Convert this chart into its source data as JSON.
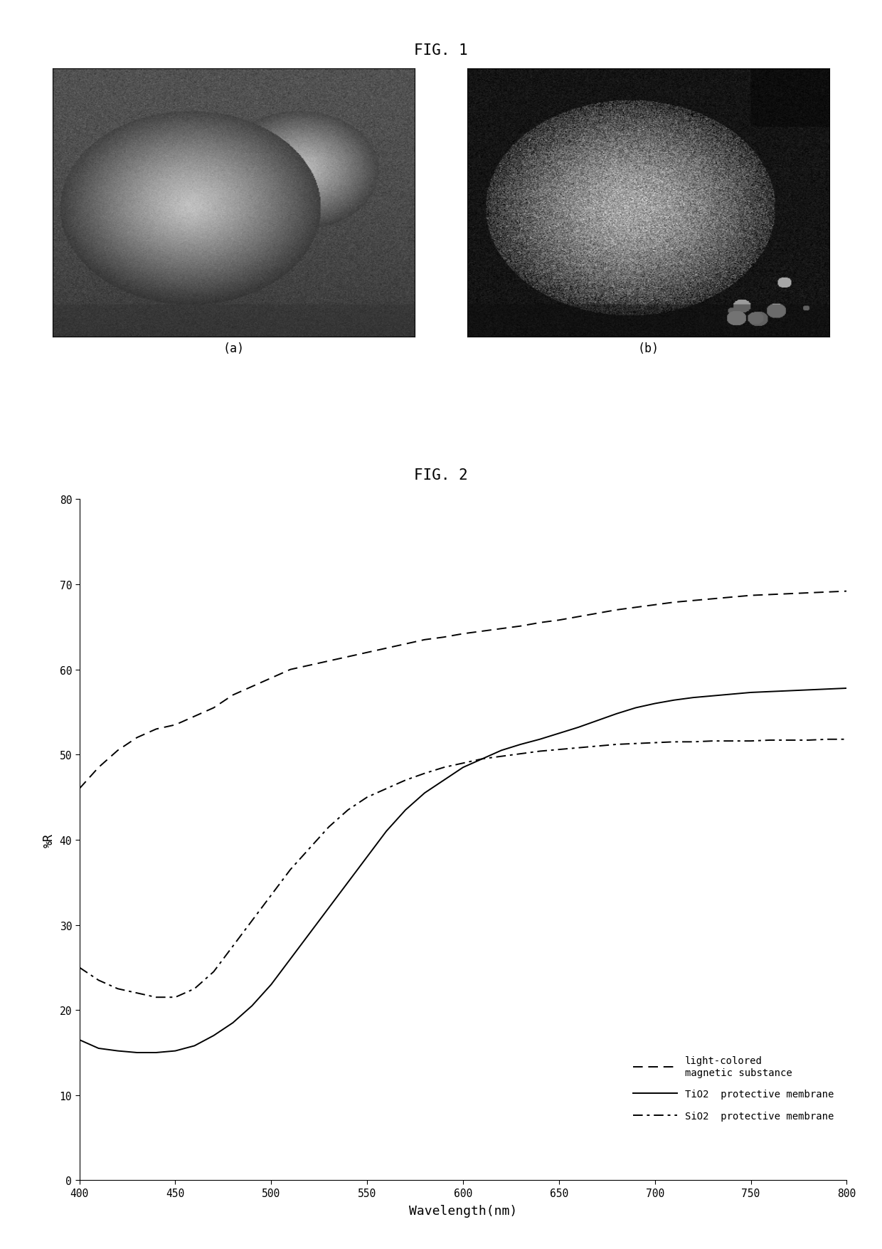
{
  "fig1_title": "FIG. 1",
  "fig2_title": "FIG. 2",
  "label_a": "(a)",
  "label_b": "(b)",
  "xlabel": "Wavelength(nm)",
  "ylabel": "%R",
  "xlim": [
    400,
    800
  ],
  "ylim": [
    0,
    80
  ],
  "xticks": [
    400,
    450,
    500,
    550,
    600,
    650,
    700,
    750,
    800
  ],
  "yticks": [
    0,
    10,
    20,
    30,
    40,
    50,
    60,
    70,
    80
  ],
  "legend_entries": [
    "light-colored\nmagnetic substance",
    "TiO2  protective membrane",
    "SiO2  protective membrane"
  ],
  "wavelength": [
    400,
    410,
    420,
    430,
    440,
    450,
    460,
    470,
    480,
    490,
    500,
    510,
    520,
    530,
    540,
    550,
    560,
    570,
    580,
    590,
    600,
    610,
    620,
    630,
    640,
    650,
    660,
    670,
    680,
    690,
    700,
    710,
    720,
    730,
    740,
    750,
    760,
    770,
    780,
    790,
    800
  ],
  "curve_light_magnetic": [
    46,
    48.5,
    50.5,
    52,
    53,
    53.5,
    54.5,
    55.5,
    57,
    58,
    59,
    60,
    60.5,
    61,
    61.5,
    62,
    62.5,
    63,
    63.5,
    63.8,
    64.2,
    64.5,
    64.8,
    65.1,
    65.5,
    65.8,
    66.2,
    66.6,
    67.0,
    67.3,
    67.6,
    67.9,
    68.1,
    68.3,
    68.5,
    68.7,
    68.8,
    68.9,
    69.0,
    69.1,
    69.2
  ],
  "curve_TiO2": [
    16.5,
    15.5,
    15.2,
    15.0,
    15.0,
    15.2,
    15.8,
    17.0,
    18.5,
    20.5,
    23.0,
    26.0,
    29.0,
    32.0,
    35.0,
    38.0,
    41.0,
    43.5,
    45.5,
    47.0,
    48.5,
    49.5,
    50.5,
    51.2,
    51.8,
    52.5,
    53.2,
    54.0,
    54.8,
    55.5,
    56.0,
    56.4,
    56.7,
    56.9,
    57.1,
    57.3,
    57.4,
    57.5,
    57.6,
    57.7,
    57.8
  ],
  "curve_SiO2": [
    25,
    23.5,
    22.5,
    22.0,
    21.5,
    21.5,
    22.5,
    24.5,
    27.5,
    30.5,
    33.5,
    36.5,
    39.0,
    41.5,
    43.5,
    45.0,
    46.0,
    47.0,
    47.8,
    48.5,
    49.0,
    49.5,
    49.8,
    50.1,
    50.4,
    50.6,
    50.8,
    51.0,
    51.2,
    51.3,
    51.4,
    51.5,
    51.5,
    51.6,
    51.6,
    51.6,
    51.7,
    51.7,
    51.7,
    51.8,
    51.8
  ],
  "bg_color": "#ffffff",
  "line_color": "#000000"
}
